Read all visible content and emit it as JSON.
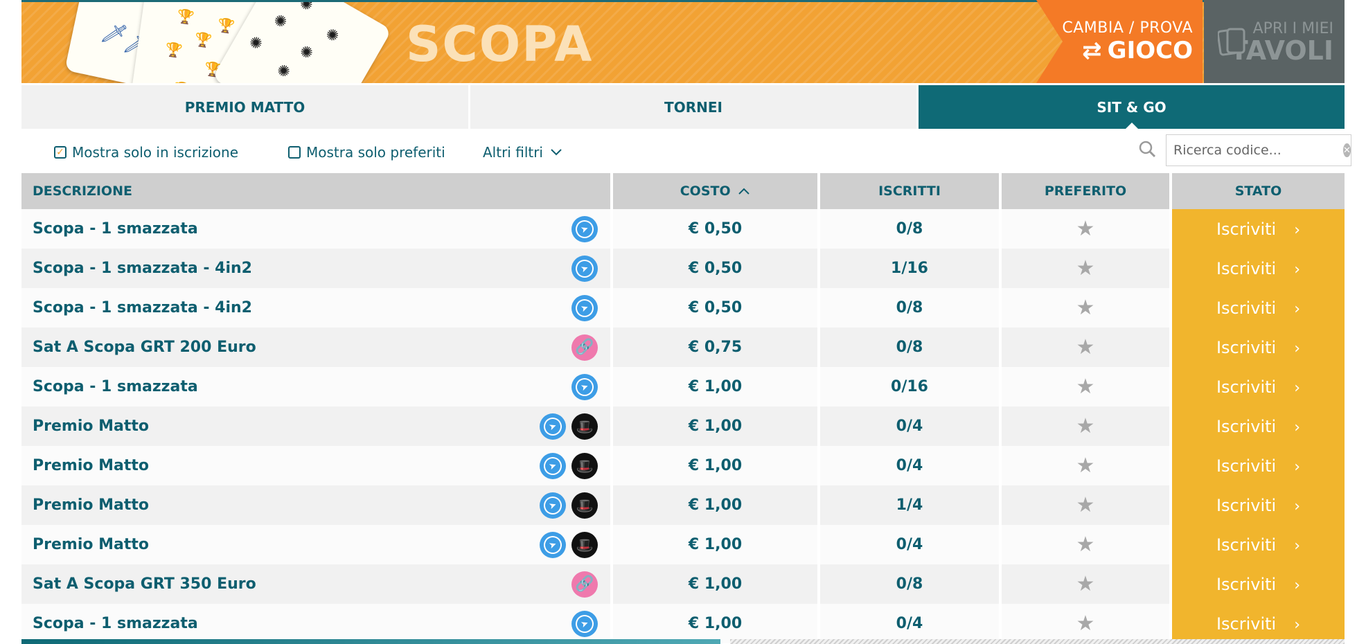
{
  "banner": {
    "title": "SCOPA",
    "switch_game_top": "CAMBIA / PROVA",
    "switch_game_bottom": "GIOCO",
    "open_tables_top": "APRI I MIEI",
    "open_tables_bottom": "TAVOLI"
  },
  "tabs": [
    {
      "label": "PREMIO MATTO",
      "active": false
    },
    {
      "label": "TORNEI",
      "active": false
    },
    {
      "label": "SIT & GO",
      "active": true
    }
  ],
  "filters": {
    "only_registering": {
      "label": "Mostra solo in iscrizione",
      "checked": true
    },
    "only_favorites": {
      "label": "Mostra solo preferiti",
      "checked": false
    },
    "more_filters": "Altri filtri",
    "search_placeholder": "Ricerca codice..."
  },
  "table": {
    "headers": {
      "description": "DESCRIZIONE",
      "cost": "COSTO",
      "enrolled": "ISCRITTI",
      "favorite": "PREFERITO",
      "status": "STATO"
    },
    "rows": [
      {
        "description": "Scopa - 1 smazzata",
        "icons": [
          "speed-icon"
        ],
        "cost": "€ 0,50",
        "enrolled": "0/8",
        "action": "Iscriviti"
      },
      {
        "description": "Scopa - 1 smazzata - 4in2",
        "icons": [
          "speed-icon"
        ],
        "cost": "€ 0,50",
        "enrolled": "1/16",
        "action": "Iscriviti"
      },
      {
        "description": "Scopa - 1 smazzata - 4in2",
        "icons": [
          "speed-icon"
        ],
        "cost": "€ 0,50",
        "enrolled": "0/8",
        "action": "Iscriviti"
      },
      {
        "description": "Sat A Scopa GRT 200 Euro",
        "icons": [
          "link-icon"
        ],
        "cost": "€ 0,75",
        "enrolled": "0/8",
        "action": "Iscriviti"
      },
      {
        "description": "Scopa - 1 smazzata",
        "icons": [
          "speed-icon"
        ],
        "cost": "€ 1,00",
        "enrolled": "0/16",
        "action": "Iscriviti"
      },
      {
        "description": "Premio Matto",
        "icons": [
          "speed-icon",
          "hat-icon"
        ],
        "cost": "€ 1,00",
        "enrolled": "0/4",
        "action": "Iscriviti"
      },
      {
        "description": "Premio Matto",
        "icons": [
          "speed-icon",
          "hat-icon"
        ],
        "cost": "€ 1,00",
        "enrolled": "0/4",
        "action": "Iscriviti"
      },
      {
        "description": "Premio Matto",
        "icons": [
          "speed-icon",
          "hat-icon"
        ],
        "cost": "€ 1,00",
        "enrolled": "1/4",
        "action": "Iscriviti"
      },
      {
        "description": "Premio Matto",
        "icons": [
          "speed-icon",
          "hat-icon"
        ],
        "cost": "€ 1,00",
        "enrolled": "0/4",
        "action": "Iscriviti"
      },
      {
        "description": "Sat A Scopa GRT 350 Euro",
        "icons": [
          "link-icon"
        ],
        "cost": "€ 1,00",
        "enrolled": "0/8",
        "action": "Iscriviti"
      },
      {
        "description": "Scopa - 1 smazzata",
        "icons": [
          "speed-icon"
        ],
        "cost": "€ 1,00",
        "enrolled": "0/4",
        "action": "Iscriviti"
      }
    ]
  },
  "colors": {
    "banner_orange": "#f2a234",
    "switch_orange": "#f47a26",
    "teal": "#0f6a76",
    "action_yellow": "#f1b52d",
    "header_gray": "#cfcfcf"
  }
}
